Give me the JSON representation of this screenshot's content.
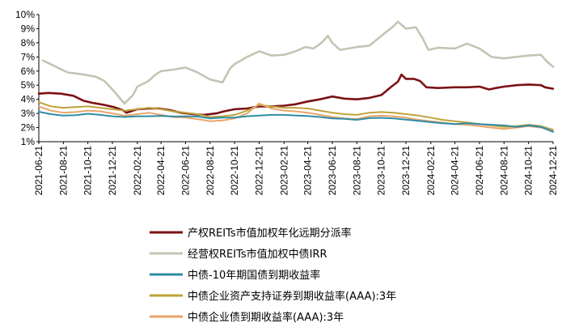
{
  "chart_data": {
    "type": "line",
    "title": "",
    "xlabel": "",
    "ylabel": "",
    "ylim": [
      1,
      10
    ],
    "y_ticks": [
      "1%",
      "2%",
      "3%",
      "4%",
      "5%",
      "6%",
      "7%",
      "8%",
      "9%",
      "10%"
    ],
    "x_range": [
      "2021-06-21",
      "2024-12-21"
    ],
    "x_ticks": [
      "2021-06-21",
      "2021-08-21",
      "2021-10-21",
      "2021-12-21",
      "2022-02-21",
      "2022-04-21",
      "2022-06-21",
      "2022-08-21",
      "2022-10-21",
      "2022-12-21",
      "2023-02-21",
      "2023-04-21",
      "2023-06-21",
      "2023-08-21",
      "2023-10-21",
      "2023-12-21",
      "2024-02-21",
      "2024-04-21",
      "2024-06-21",
      "2024-08-21",
      "2024-10-21",
      "2024-12-21"
    ],
    "grid": false,
    "legend_position": "bottom",
    "series": [
      {
        "name": "产权REITs市值加权年化远期分派率",
        "color": "#7b1113",
        "width": 2.6,
        "points": [
          [
            "2021-06-21",
            4.4
          ],
          [
            "2021-07-15",
            4.45
          ],
          [
            "2021-08-15",
            4.4
          ],
          [
            "2021-09-15",
            4.25
          ],
          [
            "2021-10-10",
            3.9
          ],
          [
            "2021-11-01",
            3.75
          ],
          [
            "2021-12-01",
            3.6
          ],
          [
            "2021-12-25",
            3.45
          ],
          [
            "2022-01-15",
            3.25
          ],
          [
            "2022-01-25",
            3.05
          ],
          [
            "2022-02-05",
            3.15
          ],
          [
            "2022-02-21",
            3.3
          ],
          [
            "2022-03-21",
            3.35
          ],
          [
            "2022-04-15",
            3.35
          ],
          [
            "2022-05-10",
            3.25
          ],
          [
            "2022-06-10",
            3.05
          ],
          [
            "2022-07-10",
            2.95
          ],
          [
            "2022-08-05",
            2.9
          ],
          [
            "2022-09-05",
            3.0
          ],
          [
            "2022-09-25",
            3.15
          ],
          [
            "2022-10-21",
            3.3
          ],
          [
            "2022-11-21",
            3.35
          ],
          [
            "2022-12-21",
            3.5
          ],
          [
            "2023-01-21",
            3.5
          ],
          [
            "2023-02-21",
            3.55
          ],
          [
            "2023-03-21",
            3.65
          ],
          [
            "2023-04-21",
            3.85
          ],
          [
            "2023-05-21",
            4.0
          ],
          [
            "2023-06-21",
            4.2
          ],
          [
            "2023-07-21",
            4.05
          ],
          [
            "2023-08-21",
            4.0
          ],
          [
            "2023-09-21",
            4.1
          ],
          [
            "2023-10-21",
            4.3
          ],
          [
            "2023-11-15",
            4.9
          ],
          [
            "2023-12-01",
            5.25
          ],
          [
            "2023-12-10",
            5.75
          ],
          [
            "2023-12-21",
            5.45
          ],
          [
            "2024-01-10",
            5.45
          ],
          [
            "2024-01-25",
            5.3
          ],
          [
            "2024-02-10",
            4.85
          ],
          [
            "2024-03-10",
            4.8
          ],
          [
            "2024-04-21",
            4.85
          ],
          [
            "2024-05-21",
            4.85
          ],
          [
            "2024-06-21",
            4.9
          ],
          [
            "2024-07-15",
            4.7
          ],
          [
            "2024-08-01",
            4.8
          ],
          [
            "2024-08-21",
            4.9
          ],
          [
            "2024-09-21",
            5.0
          ],
          [
            "2024-10-21",
            5.05
          ],
          [
            "2024-11-21",
            5.0
          ],
          [
            "2024-12-01",
            4.85
          ],
          [
            "2024-12-21",
            4.75
          ]
        ]
      },
      {
        "name": "经营权REITs市值加权中债IRR",
        "color": "#c3c5b3",
        "width": 2.6,
        "points": [
          [
            "2021-07-01",
            6.75
          ],
          [
            "2021-07-20",
            6.5
          ],
          [
            "2021-08-10",
            6.2
          ],
          [
            "2021-09-01",
            5.9
          ],
          [
            "2021-10-01",
            5.8
          ],
          [
            "2021-10-21",
            5.7
          ],
          [
            "2021-11-10",
            5.6
          ],
          [
            "2021-12-01",
            5.3
          ],
          [
            "2021-12-21",
            4.7
          ],
          [
            "2022-01-05",
            4.2
          ],
          [
            "2022-01-20",
            3.7
          ],
          [
            "2022-02-10",
            4.3
          ],
          [
            "2022-02-21",
            4.9
          ],
          [
            "2022-03-21",
            5.3
          ],
          [
            "2022-04-05",
            5.7
          ],
          [
            "2022-04-21",
            6.0
          ],
          [
            "2022-05-21",
            6.1
          ],
          [
            "2022-06-21",
            6.25
          ],
          [
            "2022-07-21",
            5.9
          ],
          [
            "2022-08-21",
            5.4
          ],
          [
            "2022-09-21",
            5.2
          ],
          [
            "2022-10-10",
            6.2
          ],
          [
            "2022-10-21",
            6.5
          ],
          [
            "2022-11-21",
            7.0
          ],
          [
            "2022-12-21",
            7.4
          ],
          [
            "2023-01-21",
            7.1
          ],
          [
            "2023-02-21",
            7.15
          ],
          [
            "2023-03-21",
            7.4
          ],
          [
            "2023-04-15",
            7.7
          ],
          [
            "2023-05-05",
            7.6
          ],
          [
            "2023-05-25",
            8.0
          ],
          [
            "2023-06-10",
            8.5
          ],
          [
            "2023-06-21",
            8.0
          ],
          [
            "2023-07-10",
            7.5
          ],
          [
            "2023-08-21",
            7.7
          ],
          [
            "2023-09-21",
            7.8
          ],
          [
            "2023-10-21",
            8.5
          ],
          [
            "2023-11-21",
            9.2
          ],
          [
            "2023-12-01",
            9.5
          ],
          [
            "2023-12-21",
            9.0
          ],
          [
            "2024-01-15",
            9.1
          ],
          [
            "2024-02-01",
            8.3
          ],
          [
            "2024-02-15",
            7.5
          ],
          [
            "2024-03-10",
            7.65
          ],
          [
            "2024-04-21",
            7.6
          ],
          [
            "2024-05-21",
            7.95
          ],
          [
            "2024-06-21",
            7.6
          ],
          [
            "2024-07-21",
            7.0
          ],
          [
            "2024-08-21",
            6.9
          ],
          [
            "2024-09-21",
            7.0
          ],
          [
            "2024-10-21",
            7.1
          ],
          [
            "2024-11-21",
            7.15
          ],
          [
            "2024-12-05",
            6.7
          ],
          [
            "2024-12-21",
            6.3
          ]
        ]
      },
      {
        "name": "中债-10年期国债到期收益率",
        "color": "#2e8ca6",
        "width": 2.0,
        "points": [
          [
            "2021-06-21",
            3.12
          ],
          [
            "2021-07-21",
            2.95
          ],
          [
            "2021-08-21",
            2.85
          ],
          [
            "2021-09-21",
            2.88
          ],
          [
            "2021-10-21",
            2.98
          ],
          [
            "2021-11-21",
            2.9
          ],
          [
            "2021-12-21",
            2.8
          ],
          [
            "2022-01-21",
            2.75
          ],
          [
            "2022-02-21",
            2.8
          ],
          [
            "2022-03-21",
            2.8
          ],
          [
            "2022-04-21",
            2.83
          ],
          [
            "2022-05-21",
            2.78
          ],
          [
            "2022-06-21",
            2.8
          ],
          [
            "2022-07-21",
            2.78
          ],
          [
            "2022-08-21",
            2.65
          ],
          [
            "2022-09-21",
            2.7
          ],
          [
            "2022-10-21",
            2.7
          ],
          [
            "2022-11-21",
            2.8
          ],
          [
            "2022-12-21",
            2.85
          ],
          [
            "2023-01-21",
            2.9
          ],
          [
            "2023-02-21",
            2.9
          ],
          [
            "2023-03-21",
            2.86
          ],
          [
            "2023-04-21",
            2.82
          ],
          [
            "2023-05-21",
            2.75
          ],
          [
            "2023-06-21",
            2.65
          ],
          [
            "2023-07-21",
            2.62
          ],
          [
            "2023-08-21",
            2.55
          ],
          [
            "2023-09-21",
            2.67
          ],
          [
            "2023-10-21",
            2.69
          ],
          [
            "2023-11-21",
            2.65
          ],
          [
            "2023-12-21",
            2.56
          ],
          [
            "2024-01-21",
            2.48
          ],
          [
            "2024-02-21",
            2.38
          ],
          [
            "2024-03-21",
            2.3
          ],
          [
            "2024-04-21",
            2.25
          ],
          [
            "2024-05-21",
            2.3
          ],
          [
            "2024-06-21",
            2.25
          ],
          [
            "2024-07-21",
            2.2
          ],
          [
            "2024-08-21",
            2.15
          ],
          [
            "2024-09-21",
            2.05
          ],
          [
            "2024-10-21",
            2.15
          ],
          [
            "2024-11-21",
            2.05
          ],
          [
            "2024-12-21",
            1.7
          ]
        ]
      },
      {
        "name": "中债企业资产支持证券到期收益率(AAA):3年",
        "color": "#bfa23a",
        "width": 2.0,
        "points": [
          [
            "2021-06-21",
            3.8
          ],
          [
            "2021-07-21",
            3.5
          ],
          [
            "2021-08-21",
            3.4
          ],
          [
            "2021-09-21",
            3.45
          ],
          [
            "2021-10-21",
            3.5
          ],
          [
            "2021-11-21",
            3.4
          ],
          [
            "2021-12-21",
            3.3
          ],
          [
            "2022-01-21",
            3.2
          ],
          [
            "2022-02-21",
            3.3
          ],
          [
            "2022-03-21",
            3.4
          ],
          [
            "2022-04-21",
            3.3
          ],
          [
            "2022-05-21",
            3.15
          ],
          [
            "2022-06-21",
            3.05
          ],
          [
            "2022-07-21",
            2.95
          ],
          [
            "2022-08-21",
            2.75
          ],
          [
            "2022-09-21",
            2.8
          ],
          [
            "2022-10-21",
            2.9
          ],
          [
            "2022-11-21",
            3.2
          ],
          [
            "2022-12-21",
            3.6
          ],
          [
            "2023-01-21",
            3.5
          ],
          [
            "2023-02-21",
            3.4
          ],
          [
            "2023-03-21",
            3.4
          ],
          [
            "2023-04-21",
            3.35
          ],
          [
            "2023-05-21",
            3.2
          ],
          [
            "2023-06-21",
            3.05
          ],
          [
            "2023-07-21",
            2.95
          ],
          [
            "2023-08-21",
            2.9
          ],
          [
            "2023-09-21",
            3.05
          ],
          [
            "2023-10-21",
            3.1
          ],
          [
            "2023-11-21",
            3.05
          ],
          [
            "2023-12-21",
            2.95
          ],
          [
            "2024-01-21",
            2.85
          ],
          [
            "2024-02-21",
            2.7
          ],
          [
            "2024-03-21",
            2.55
          ],
          [
            "2024-04-21",
            2.45
          ],
          [
            "2024-05-21",
            2.35
          ],
          [
            "2024-06-21",
            2.25
          ],
          [
            "2024-07-21",
            2.15
          ],
          [
            "2024-08-21",
            2.05
          ],
          [
            "2024-09-21",
            2.1
          ],
          [
            "2024-10-21",
            2.2
          ],
          [
            "2024-11-21",
            2.1
          ],
          [
            "2024-12-21",
            1.85
          ]
        ]
      },
      {
        "name": "中债企业债到期收益率(AAA):3年",
        "color": "#e8a56a",
        "width": 2.0,
        "points": [
          [
            "2021-06-21",
            3.5
          ],
          [
            "2021-07-21",
            3.2
          ],
          [
            "2021-08-21",
            3.05
          ],
          [
            "2021-09-21",
            3.1
          ],
          [
            "2021-10-21",
            3.2
          ],
          [
            "2021-11-21",
            3.15
          ],
          [
            "2021-12-21",
            3.0
          ],
          [
            "2022-01-21",
            2.85
          ],
          [
            "2022-02-21",
            2.95
          ],
          [
            "2022-03-21",
            3.05
          ],
          [
            "2022-04-21",
            2.9
          ],
          [
            "2022-05-21",
            2.75
          ],
          [
            "2022-06-21",
            2.7
          ],
          [
            "2022-07-21",
            2.6
          ],
          [
            "2022-08-21",
            2.45
          ],
          [
            "2022-09-21",
            2.5
          ],
          [
            "2022-10-21",
            2.65
          ],
          [
            "2022-11-21",
            3.0
          ],
          [
            "2022-12-21",
            3.7
          ],
          [
            "2023-01-21",
            3.35
          ],
          [
            "2023-02-21",
            3.2
          ],
          [
            "2023-03-21",
            3.15
          ],
          [
            "2023-04-21",
            3.05
          ],
          [
            "2023-05-21",
            2.9
          ],
          [
            "2023-06-21",
            2.75
          ],
          [
            "2023-07-21",
            2.65
          ],
          [
            "2023-08-21",
            2.6
          ],
          [
            "2023-09-21",
            2.8
          ],
          [
            "2023-10-21",
            2.85
          ],
          [
            "2023-11-21",
            2.8
          ],
          [
            "2023-12-21",
            2.7
          ],
          [
            "2024-01-21",
            2.55
          ],
          [
            "2024-02-21",
            2.45
          ],
          [
            "2024-03-21",
            2.35
          ],
          [
            "2024-04-21",
            2.25
          ],
          [
            "2024-05-21",
            2.2
          ],
          [
            "2024-06-21",
            2.1
          ],
          [
            "2024-07-21",
            2.0
          ],
          [
            "2024-08-21",
            1.9
          ],
          [
            "2024-09-21",
            2.0
          ],
          [
            "2024-10-21",
            2.1
          ],
          [
            "2024-11-21",
            2.0
          ],
          [
            "2024-12-21",
            1.75
          ]
        ]
      }
    ]
  }
}
